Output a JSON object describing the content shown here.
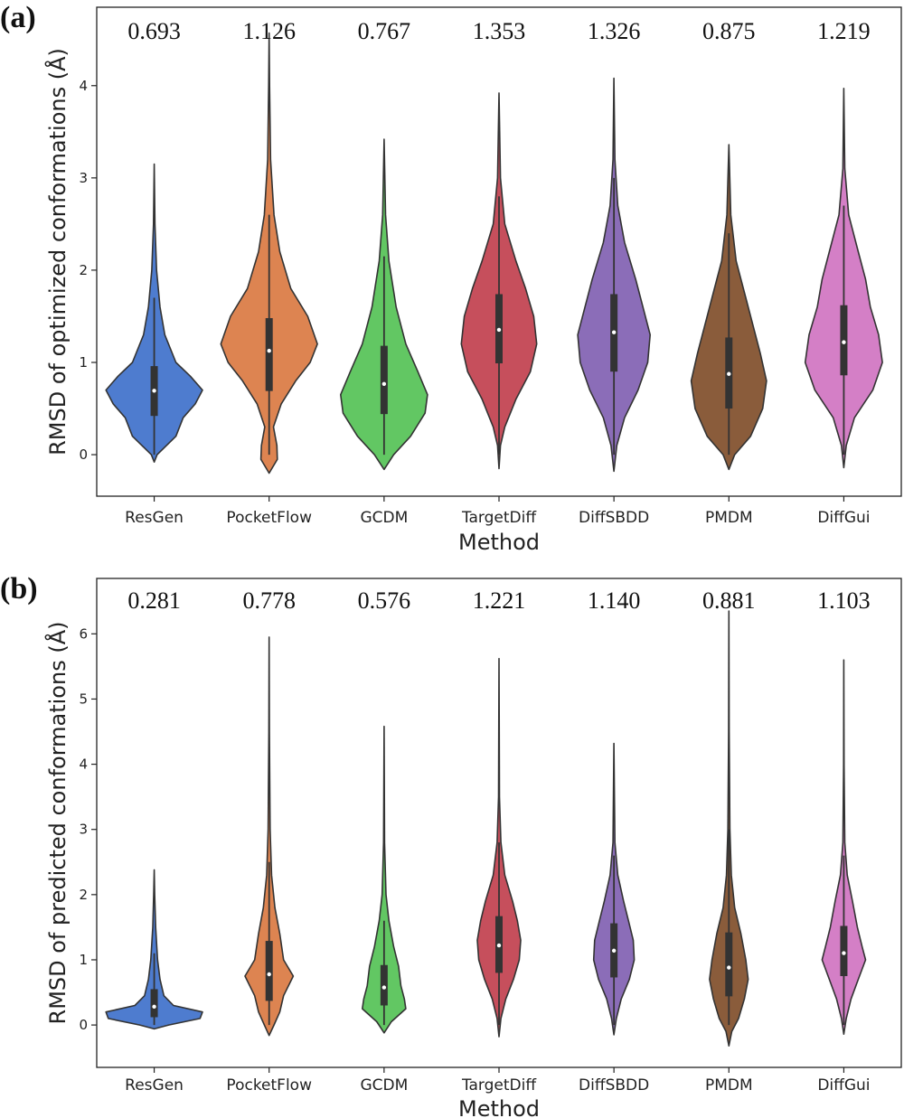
{
  "chart_data": [
    {
      "type": "violin",
      "panel_label": "(a)",
      "xlabel": "Method",
      "ylabel": "RMSD of optimized conformations (Å)",
      "ylim": [
        -0.45,
        4.85
      ],
      "yticks": [
        0,
        1,
        2,
        3,
        4
      ],
      "ytick_labels": [
        "0",
        "1",
        "2",
        "3",
        "4"
      ],
      "grid": false,
      "categories": [
        "ResGen",
        "PocketFlow",
        "GCDM",
        "TargetDiff",
        "DiffSBDD",
        "PMDM",
        "DiffGui"
      ],
      "colors": [
        "#4e7ccf",
        "#dd8451",
        "#62c763",
        "#c64f5c",
        "#8b6db8",
        "#8a5c3b",
        "#d47fc6"
      ],
      "median_labels": [
        "0.693",
        "1.126",
        "0.767",
        "1.353",
        "1.326",
        "0.875",
        "1.219"
      ],
      "series": [
        {
          "name": "ResGen",
          "median": 0.693,
          "q1": 0.42,
          "q3": 0.96,
          "whisker_low": 0.0,
          "whisker_high": 1.7,
          "min": -0.08,
          "max": 3.15,
          "profile": [
            [
              -0.08,
              0.0
            ],
            [
              0.0,
              0.06
            ],
            [
              0.2,
              0.45
            ],
            [
              0.4,
              0.6
            ],
            [
              0.55,
              0.85
            ],
            [
              0.7,
              1.0
            ],
            [
              0.85,
              0.75
            ],
            [
              1.0,
              0.45
            ],
            [
              1.3,
              0.22
            ],
            [
              1.6,
              0.12
            ],
            [
              2.0,
              0.05
            ],
            [
              2.5,
              0.015
            ],
            [
              3.15,
              0.0
            ]
          ]
        },
        {
          "name": "PocketFlow",
          "median": 1.126,
          "q1": 0.69,
          "q3": 1.48,
          "whisker_low": 0.0,
          "whisker_high": 2.6,
          "min": -0.2,
          "max": 4.57,
          "profile": [
            [
              -0.2,
              0.0
            ],
            [
              -0.05,
              0.17
            ],
            [
              0.1,
              0.16
            ],
            [
              0.3,
              0.09
            ],
            [
              0.55,
              0.25
            ],
            [
              0.8,
              0.55
            ],
            [
              1.0,
              0.85
            ],
            [
              1.2,
              1.0
            ],
            [
              1.5,
              0.8
            ],
            [
              1.8,
              0.45
            ],
            [
              2.2,
              0.22
            ],
            [
              2.6,
              0.1
            ],
            [
              3.2,
              0.03
            ],
            [
              4.0,
              0.01
            ],
            [
              4.57,
              0.0
            ]
          ]
        },
        {
          "name": "GCDM",
          "median": 0.767,
          "q1": 0.44,
          "q3": 1.18,
          "whisker_low": 0.0,
          "whisker_high": 2.15,
          "min": -0.16,
          "max": 3.42,
          "profile": [
            [
              -0.16,
              0.0
            ],
            [
              0.0,
              0.2
            ],
            [
              0.2,
              0.55
            ],
            [
              0.45,
              0.85
            ],
            [
              0.65,
              0.9
            ],
            [
              0.9,
              0.7
            ],
            [
              1.2,
              0.45
            ],
            [
              1.6,
              0.25
            ],
            [
              2.1,
              0.1
            ],
            [
              2.6,
              0.03
            ],
            [
              3.42,
              0.0
            ]
          ]
        },
        {
          "name": "TargetDiff",
          "median": 1.353,
          "q1": 0.99,
          "q3": 1.74,
          "whisker_low": 0.0,
          "whisker_high": 2.8,
          "min": -0.15,
          "max": 3.92,
          "profile": [
            [
              -0.15,
              0.0
            ],
            [
              0.1,
              0.03
            ],
            [
              0.3,
              0.12
            ],
            [
              0.6,
              0.35
            ],
            [
              0.9,
              0.65
            ],
            [
              1.2,
              0.78
            ],
            [
              1.5,
              0.72
            ],
            [
              1.8,
              0.55
            ],
            [
              2.1,
              0.35
            ],
            [
              2.5,
              0.12
            ],
            [
              3.0,
              0.03
            ],
            [
              3.92,
              0.0
            ]
          ]
        },
        {
          "name": "DiffSBDD",
          "median": 1.326,
          "q1": 0.9,
          "q3": 1.74,
          "whisker_low": 0.0,
          "whisker_high": 3.0,
          "min": -0.18,
          "max": 4.08,
          "profile": [
            [
              -0.18,
              0.0
            ],
            [
              0.1,
              0.06
            ],
            [
              0.4,
              0.22
            ],
            [
              0.7,
              0.5
            ],
            [
              1.0,
              0.7
            ],
            [
              1.3,
              0.75
            ],
            [
              1.6,
              0.6
            ],
            [
              1.9,
              0.45
            ],
            [
              2.3,
              0.22
            ],
            [
              2.7,
              0.08
            ],
            [
              3.2,
              0.02
            ],
            [
              4.08,
              0.0
            ]
          ]
        },
        {
          "name": "PMDM",
          "median": 0.875,
          "q1": 0.5,
          "q3": 1.27,
          "whisker_low": 0.0,
          "whisker_high": 2.4,
          "min": -0.16,
          "max": 3.36,
          "profile": [
            [
              -0.16,
              0.0
            ],
            [
              0.0,
              0.12
            ],
            [
              0.2,
              0.45
            ],
            [
              0.5,
              0.7
            ],
            [
              0.8,
              0.78
            ],
            [
              1.1,
              0.65
            ],
            [
              1.4,
              0.5
            ],
            [
              1.7,
              0.35
            ],
            [
              2.1,
              0.15
            ],
            [
              2.6,
              0.04
            ],
            [
              3.36,
              0.0
            ]
          ]
        },
        {
          "name": "DiffGui",
          "median": 1.219,
          "q1": 0.86,
          "q3": 1.62,
          "whisker_low": 0.0,
          "whisker_high": 2.7,
          "min": -0.14,
          "max": 3.97,
          "profile": [
            [
              -0.14,
              0.0
            ],
            [
              0.1,
              0.05
            ],
            [
              0.4,
              0.22
            ],
            [
              0.7,
              0.6
            ],
            [
              1.0,
              0.8
            ],
            [
              1.3,
              0.72
            ],
            [
              1.6,
              0.55
            ],
            [
              1.9,
              0.45
            ],
            [
              2.2,
              0.3
            ],
            [
              2.6,
              0.1
            ],
            [
              3.1,
              0.02
            ],
            [
              3.97,
              0.0
            ]
          ]
        }
      ]
    },
    {
      "type": "violin",
      "panel_label": "(b)",
      "xlabel": "Method",
      "ylabel": "RMSD of predicted conformations (Å)",
      "ylim": [
        -0.65,
        6.85
      ],
      "yticks": [
        0,
        1,
        2,
        3,
        4,
        5,
        6
      ],
      "ytick_labels": [
        "0",
        "1",
        "2",
        "3",
        "4",
        "5",
        "6"
      ],
      "grid": false,
      "categories": [
        "ResGen",
        "PocketFlow",
        "GCDM",
        "TargetDiff",
        "DiffSBDD",
        "PMDM",
        "DiffGui"
      ],
      "colors": [
        "#4e7ccf",
        "#dd8451",
        "#62c763",
        "#c64f5c",
        "#8b6db8",
        "#8a5c3b",
        "#d47fc6"
      ],
      "median_labels": [
        "0.281",
        "0.778",
        "0.576",
        "1.221",
        "1.140",
        "0.881",
        "1.103"
      ],
      "series": [
        {
          "name": "ResGen",
          "median": 0.281,
          "q1": 0.12,
          "q3": 0.55,
          "whisker_low": 0.0,
          "whisker_high": 1.1,
          "min": -0.06,
          "max": 2.38,
          "profile": [
            [
              -0.06,
              0.0
            ],
            [
              0.0,
              0.3
            ],
            [
              0.1,
              0.95
            ],
            [
              0.2,
              1.0
            ],
            [
              0.3,
              0.4
            ],
            [
              0.45,
              0.2
            ],
            [
              0.7,
              0.12
            ],
            [
              1.0,
              0.07
            ],
            [
              1.5,
              0.03
            ],
            [
              2.0,
              0.01
            ],
            [
              2.38,
              0.0
            ]
          ]
        },
        {
          "name": "PocketFlow",
          "median": 0.778,
          "q1": 0.37,
          "q3": 1.29,
          "whisker_low": 0.0,
          "whisker_high": 2.5,
          "min": -0.16,
          "max": 5.95,
          "profile": [
            [
              -0.16,
              0.0
            ],
            [
              0.0,
              0.1
            ],
            [
              0.2,
              0.22
            ],
            [
              0.45,
              0.3
            ],
            [
              0.75,
              0.5
            ],
            [
              1.0,
              0.3
            ],
            [
              1.4,
              0.22
            ],
            [
              1.8,
              0.12
            ],
            [
              2.3,
              0.05
            ],
            [
              3.0,
              0.02
            ],
            [
              4.5,
              0.005
            ],
            [
              5.95,
              0.0
            ]
          ]
        },
        {
          "name": "GCDM",
          "median": 0.576,
          "q1": 0.3,
          "q3": 0.92,
          "whisker_low": 0.0,
          "whisker_high": 1.6,
          "min": -0.12,
          "max": 4.58,
          "profile": [
            [
              -0.12,
              0.0
            ],
            [
              0.05,
              0.15
            ],
            [
              0.25,
              0.45
            ],
            [
              0.4,
              0.42
            ],
            [
              0.6,
              0.35
            ],
            [
              0.9,
              0.3
            ],
            [
              1.2,
              0.2
            ],
            [
              1.6,
              0.1
            ],
            [
              2.0,
              0.04
            ],
            [
              2.8,
              0.01
            ],
            [
              4.58,
              0.0
            ]
          ]
        },
        {
          "name": "TargetDiff",
          "median": 1.221,
          "q1": 0.8,
          "q3": 1.67,
          "whisker_low": 0.0,
          "whisker_high": 2.8,
          "min": -0.18,
          "max": 5.62,
          "profile": [
            [
              -0.18,
              0.0
            ],
            [
              0.1,
              0.04
            ],
            [
              0.4,
              0.14
            ],
            [
              0.7,
              0.3
            ],
            [
              1.0,
              0.42
            ],
            [
              1.3,
              0.45
            ],
            [
              1.6,
              0.38
            ],
            [
              1.9,
              0.28
            ],
            [
              2.3,
              0.12
            ],
            [
              2.8,
              0.04
            ],
            [
              3.5,
              0.01
            ],
            [
              5.62,
              0.0
            ]
          ]
        },
        {
          "name": "DiffSBDD",
          "median": 1.14,
          "q1": 0.73,
          "q3": 1.56,
          "whisker_low": 0.0,
          "whisker_high": 2.6,
          "min": -0.15,
          "max": 4.32,
          "profile": [
            [
              -0.15,
              0.0
            ],
            [
              0.1,
              0.05
            ],
            [
              0.4,
              0.15
            ],
            [
              0.7,
              0.32
            ],
            [
              1.0,
              0.42
            ],
            [
              1.3,
              0.4
            ],
            [
              1.6,
              0.3
            ],
            [
              1.9,
              0.2
            ],
            [
              2.3,
              0.08
            ],
            [
              2.8,
              0.02
            ],
            [
              4.32,
              0.0
            ]
          ]
        },
        {
          "name": "PMDM",
          "median": 0.881,
          "q1": 0.44,
          "q3": 1.42,
          "whisker_low": 0.0,
          "whisker_high": 3.0,
          "min": -0.32,
          "max": 6.35,
          "profile": [
            [
              -0.32,
              0.0
            ],
            [
              -0.1,
              0.06
            ],
            [
              0.1,
              0.2
            ],
            [
              0.4,
              0.32
            ],
            [
              0.7,
              0.4
            ],
            [
              1.0,
              0.35
            ],
            [
              1.4,
              0.25
            ],
            [
              1.8,
              0.12
            ],
            [
              2.3,
              0.05
            ],
            [
              3.0,
              0.02
            ],
            [
              4.5,
              0.005
            ],
            [
              6.35,
              0.0
            ]
          ]
        },
        {
          "name": "DiffGui",
          "median": 1.103,
          "q1": 0.75,
          "q3": 1.52,
          "whisker_low": 0.0,
          "whisker_high": 2.6,
          "min": -0.14,
          "max": 5.6,
          "profile": [
            [
              -0.14,
              0.0
            ],
            [
              0.1,
              0.05
            ],
            [
              0.4,
              0.15
            ],
            [
              0.7,
              0.3
            ],
            [
              1.0,
              0.45
            ],
            [
              1.2,
              0.38
            ],
            [
              1.5,
              0.28
            ],
            [
              1.9,
              0.18
            ],
            [
              2.3,
              0.07
            ],
            [
              2.8,
              0.02
            ],
            [
              4.0,
              0.005
            ],
            [
              5.6,
              0.0
            ]
          ]
        }
      ]
    }
  ]
}
